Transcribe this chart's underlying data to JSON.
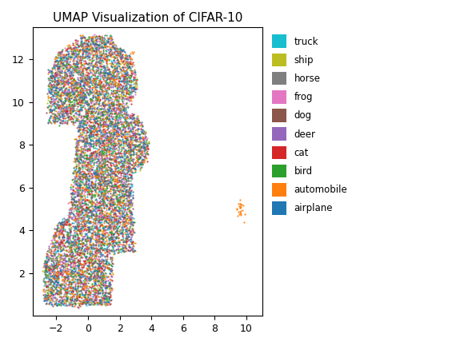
{
  "title": "UMAP Visualization of CIFAR-10",
  "classes": [
    "truck",
    "ship",
    "horse",
    "frog",
    "dog",
    "deer",
    "cat",
    "bird",
    "automobile",
    "airplane"
  ],
  "colors": {
    "truck": "#17becf",
    "ship": "#bcbd22",
    "horse": "#7f7f7f",
    "frog": "#e377c2",
    "dog": "#8c564b",
    "deer": "#9467bd",
    "cat": "#d62728",
    "bird": "#2ca02c",
    "automobile": "#ff7f0e",
    "airplane": "#1f77b4"
  },
  "xlim": [
    -3.5,
    11
  ],
  "ylim": [
    0,
    13.5
  ],
  "n_points_per_class": 1000,
  "seed": 42,
  "background_color": "#ffffff",
  "point_size": 2.5,
  "alpha": 0.9,
  "outlier_x": 9.6,
  "outlier_y": 5.0
}
